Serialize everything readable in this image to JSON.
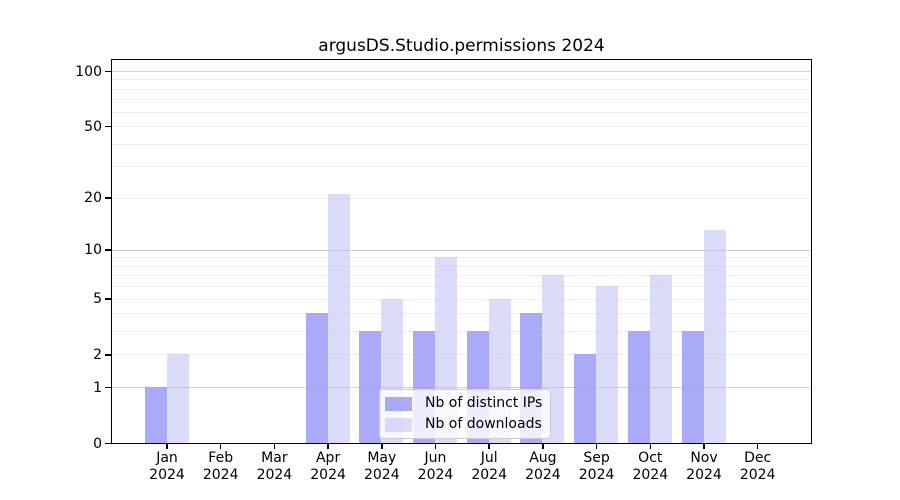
{
  "chart_data": {
    "type": "bar",
    "title": "argusDS.Studio.permissions 2024",
    "year": "2024",
    "months": [
      "Jan",
      "Feb",
      "Mar",
      "Apr",
      "May",
      "Jun",
      "Jul",
      "Aug",
      "Sep",
      "Oct",
      "Nov",
      "Dec"
    ],
    "categories": [
      "Jan 2024",
      "Feb 2024",
      "Mar 2024",
      "Apr 2024",
      "May 2024",
      "Jun 2024",
      "Jul 2024",
      "Aug 2024",
      "Sep 2024",
      "Oct 2024",
      "Nov 2024",
      "Dec 2024"
    ],
    "series": [
      {
        "name": "Nb of distinct IPs",
        "color": "rgba(149,149,246,0.8)",
        "values": [
          1,
          0,
          0,
          4,
          3,
          3,
          3,
          4,
          2,
          3,
          3,
          0
        ]
      },
      {
        "name": "Nb of downloads",
        "color": "rgba(183,183,245,0.5)",
        "values": [
          2,
          0,
          0,
          21,
          5,
          9,
          5,
          7,
          6,
          7,
          13,
          0
        ]
      }
    ],
    "y_axis": {
      "scale": "log10(1+y)",
      "range": [
        0,
        100
      ],
      "tick_values": [
        0,
        1,
        2,
        5,
        10,
        20,
        50,
        100
      ],
      "major_gridlines": [
        1,
        10,
        100
      ],
      "minor_gridlines": [
        2,
        3,
        4,
        5,
        6,
        7,
        8,
        9,
        20,
        30,
        40,
        50,
        60,
        70,
        80,
        90
      ]
    },
    "xlabel": "",
    "ylabel": "",
    "grid": "on",
    "legend_position": "bottom-center-inside"
  }
}
